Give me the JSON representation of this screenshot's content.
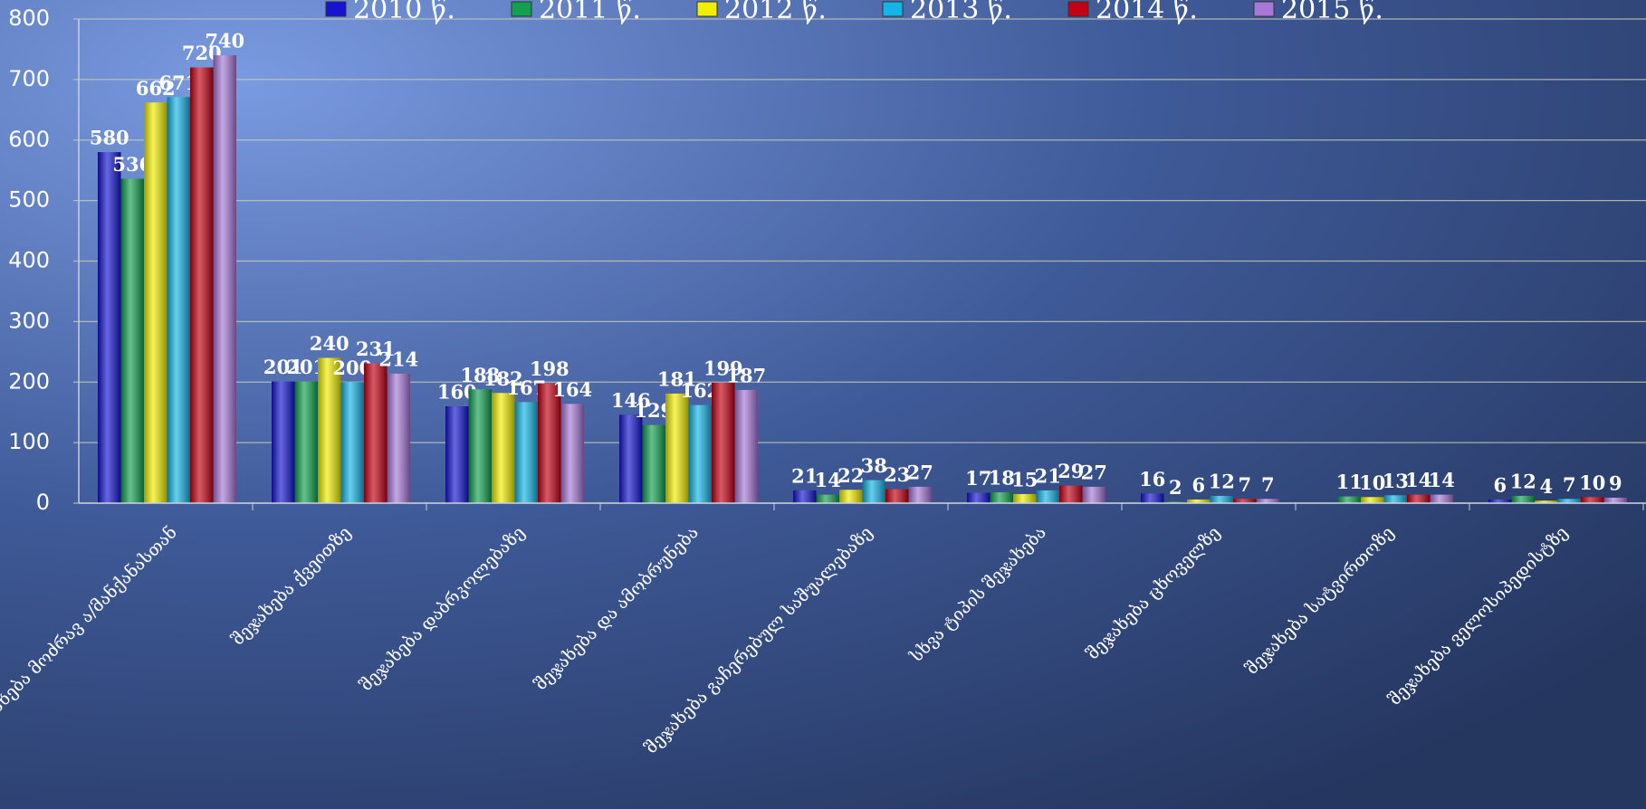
{
  "chart_data": {
    "type": "bar",
    "categories": [
      "შეჯახება მოძრავ ა/მანქანასთან",
      "შეჯახება ქვეითზე",
      "შეჯახება დაბრკოლებაზე",
      "შეჯახება და ამობრუნება",
      "შეჯახება გაჩერებულ საშუალებაზე",
      "სხვა ტიპის შეჯახება",
      "შეჯახება ცხოველზე",
      "შეჯახება სატვირთოზე",
      "შეჯახება ველოსიპედისტზე"
    ],
    "series": [
      {
        "name": "2010 წ.",
        "color": "#1414d2",
        "values": [
          580,
          201,
          160,
          146,
          21,
          17,
          16,
          null,
          6
        ]
      },
      {
        "name": "2011 წ.",
        "color": "#12a050",
        "values": [
          536,
          201,
          188,
          129,
          14,
          18,
          2,
          11,
          12
        ]
      },
      {
        "name": "2012 წ.",
        "color": "#f2ee00",
        "values": [
          662,
          240,
          182,
          181,
          22,
          15,
          6,
          10,
          4
        ]
      },
      {
        "name": "2013 წ.",
        "color": "#14b4e6",
        "values": [
          671,
          200,
          167,
          162,
          38,
          21,
          12,
          13,
          7
        ]
      },
      {
        "name": "2014 წ.",
        "color": "#c40014",
        "values": [
          720,
          231,
          198,
          199,
          23,
          29,
          7,
          14,
          10
        ]
      },
      {
        "name": "2015 წ.",
        "color": "#a878d8",
        "values": [
          740,
          214,
          164,
          187,
          27,
          27,
          7,
          14,
          9
        ]
      }
    ],
    "ylim": [
      0,
      800
    ],
    "yticks": [
      0,
      100,
      200,
      300,
      400,
      500,
      600,
      700,
      800
    ],
    "grid": true
  }
}
